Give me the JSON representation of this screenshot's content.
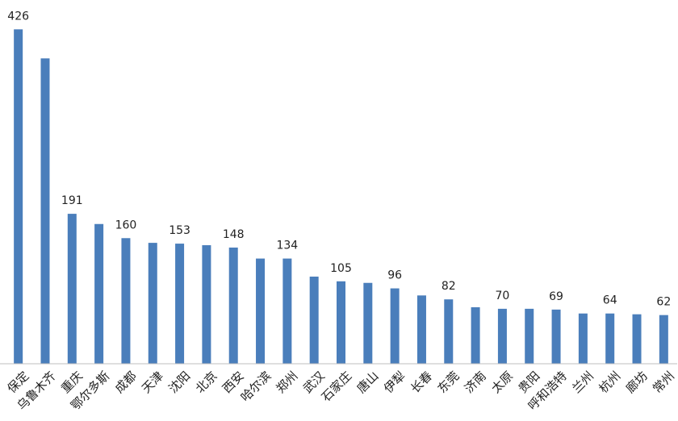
{
  "chart_data": {
    "type": "bar",
    "categories": [
      "保定",
      "乌鲁木齐",
      "重庆",
      "鄂尔多斯",
      "成都",
      "天津",
      "沈阳",
      "北京",
      "西安",
      "哈尔滨",
      "郑州",
      "武汉",
      "石家庄",
      "唐山",
      "伊犁",
      "长春",
      "东莞",
      "济南",
      "太原",
      "贵阳",
      "呼和浩特",
      "兰州",
      "杭州",
      "廊坊",
      "常州"
    ],
    "values": [
      426,
      389,
      191,
      178,
      160,
      154,
      153,
      151,
      148,
      134,
      134,
      111,
      105,
      103,
      96,
      87,
      82,
      72,
      70,
      70,
      69,
      64,
      64,
      63,
      62
    ],
    "color": "#4a7ebb",
    "ylim": [
      0,
      450
    ],
    "data_label_step": 2
  }
}
